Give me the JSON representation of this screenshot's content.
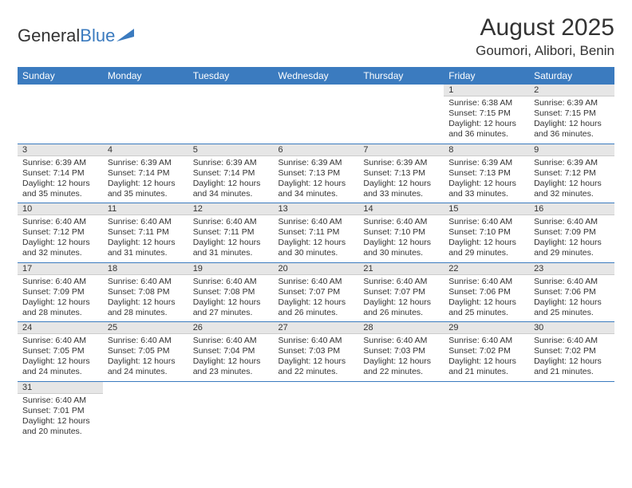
{
  "logo": {
    "text1": "General",
    "text2": "Blue"
  },
  "title": "August 2025",
  "location": "Goumori, Alibori, Benin",
  "header_bg": "#3b7bbf",
  "header_fg": "#ffffff",
  "daybar_bg": "#e6e6e6",
  "border_color": "#3b7bbf",
  "weekdays": [
    "Sunday",
    "Monday",
    "Tuesday",
    "Wednesday",
    "Thursday",
    "Friday",
    "Saturday"
  ],
  "weeks": [
    [
      null,
      null,
      null,
      null,
      null,
      {
        "n": "1",
        "sr": "6:38 AM",
        "ss": "7:15 PM",
        "dl": "12 hours and 36 minutes."
      },
      {
        "n": "2",
        "sr": "6:39 AM",
        "ss": "7:15 PM",
        "dl": "12 hours and 36 minutes."
      }
    ],
    [
      {
        "n": "3",
        "sr": "6:39 AM",
        "ss": "7:14 PM",
        "dl": "12 hours and 35 minutes."
      },
      {
        "n": "4",
        "sr": "6:39 AM",
        "ss": "7:14 PM",
        "dl": "12 hours and 35 minutes."
      },
      {
        "n": "5",
        "sr": "6:39 AM",
        "ss": "7:14 PM",
        "dl": "12 hours and 34 minutes."
      },
      {
        "n": "6",
        "sr": "6:39 AM",
        "ss": "7:13 PM",
        "dl": "12 hours and 34 minutes."
      },
      {
        "n": "7",
        "sr": "6:39 AM",
        "ss": "7:13 PM",
        "dl": "12 hours and 33 minutes."
      },
      {
        "n": "8",
        "sr": "6:39 AM",
        "ss": "7:13 PM",
        "dl": "12 hours and 33 minutes."
      },
      {
        "n": "9",
        "sr": "6:39 AM",
        "ss": "7:12 PM",
        "dl": "12 hours and 32 minutes."
      }
    ],
    [
      {
        "n": "10",
        "sr": "6:40 AM",
        "ss": "7:12 PM",
        "dl": "12 hours and 32 minutes."
      },
      {
        "n": "11",
        "sr": "6:40 AM",
        "ss": "7:11 PM",
        "dl": "12 hours and 31 minutes."
      },
      {
        "n": "12",
        "sr": "6:40 AM",
        "ss": "7:11 PM",
        "dl": "12 hours and 31 minutes."
      },
      {
        "n": "13",
        "sr": "6:40 AM",
        "ss": "7:11 PM",
        "dl": "12 hours and 30 minutes."
      },
      {
        "n": "14",
        "sr": "6:40 AM",
        "ss": "7:10 PM",
        "dl": "12 hours and 30 minutes."
      },
      {
        "n": "15",
        "sr": "6:40 AM",
        "ss": "7:10 PM",
        "dl": "12 hours and 29 minutes."
      },
      {
        "n": "16",
        "sr": "6:40 AM",
        "ss": "7:09 PM",
        "dl": "12 hours and 29 minutes."
      }
    ],
    [
      {
        "n": "17",
        "sr": "6:40 AM",
        "ss": "7:09 PM",
        "dl": "12 hours and 28 minutes."
      },
      {
        "n": "18",
        "sr": "6:40 AM",
        "ss": "7:08 PM",
        "dl": "12 hours and 28 minutes."
      },
      {
        "n": "19",
        "sr": "6:40 AM",
        "ss": "7:08 PM",
        "dl": "12 hours and 27 minutes."
      },
      {
        "n": "20",
        "sr": "6:40 AM",
        "ss": "7:07 PM",
        "dl": "12 hours and 26 minutes."
      },
      {
        "n": "21",
        "sr": "6:40 AM",
        "ss": "7:07 PM",
        "dl": "12 hours and 26 minutes."
      },
      {
        "n": "22",
        "sr": "6:40 AM",
        "ss": "7:06 PM",
        "dl": "12 hours and 25 minutes."
      },
      {
        "n": "23",
        "sr": "6:40 AM",
        "ss": "7:06 PM",
        "dl": "12 hours and 25 minutes."
      }
    ],
    [
      {
        "n": "24",
        "sr": "6:40 AM",
        "ss": "7:05 PM",
        "dl": "12 hours and 24 minutes."
      },
      {
        "n": "25",
        "sr": "6:40 AM",
        "ss": "7:05 PM",
        "dl": "12 hours and 24 minutes."
      },
      {
        "n": "26",
        "sr": "6:40 AM",
        "ss": "7:04 PM",
        "dl": "12 hours and 23 minutes."
      },
      {
        "n": "27",
        "sr": "6:40 AM",
        "ss": "7:03 PM",
        "dl": "12 hours and 22 minutes."
      },
      {
        "n": "28",
        "sr": "6:40 AM",
        "ss": "7:03 PM",
        "dl": "12 hours and 22 minutes."
      },
      {
        "n": "29",
        "sr": "6:40 AM",
        "ss": "7:02 PM",
        "dl": "12 hours and 21 minutes."
      },
      {
        "n": "30",
        "sr": "6:40 AM",
        "ss": "7:02 PM",
        "dl": "12 hours and 21 minutes."
      }
    ],
    [
      {
        "n": "31",
        "sr": "6:40 AM",
        "ss": "7:01 PM",
        "dl": "12 hours and 20 minutes."
      },
      null,
      null,
      null,
      null,
      null,
      null
    ]
  ],
  "labels": {
    "sunrise": "Sunrise: ",
    "sunset": "Sunset: ",
    "daylight": "Daylight: "
  }
}
